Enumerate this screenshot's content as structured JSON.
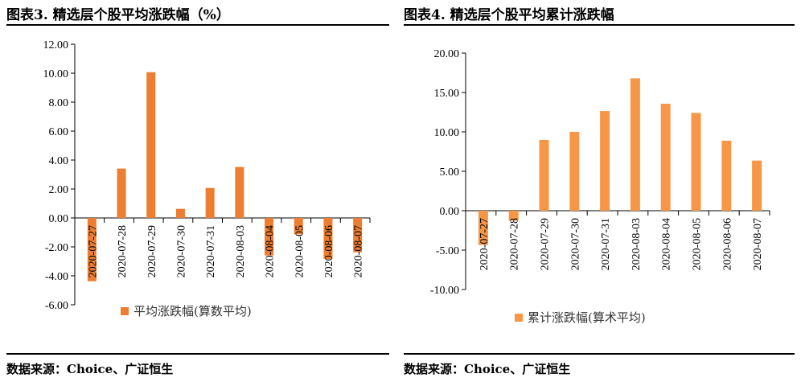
{
  "left": {
    "title": "图表3. 精选层个股平均涨跌幅（%）",
    "source": "数据来源：Choice、广证恒生"
  },
  "right": {
    "title": "图表4. 精选层个股平均累计涨跌幅",
    "source": "数据来源：Choice、广证恒生"
  },
  "chart_data": [
    {
      "type": "bar",
      "categories": [
        "2020-07-27",
        "2020-07-28",
        "2020-07-29",
        "2020-07-30",
        "2020-07-31",
        "2020-08-03",
        "2020-08-04",
        "2020-08-05",
        "2020-08-06",
        "2020-08-07"
      ],
      "series": [
        {
          "name": "平均涨跌幅(算数平均)",
          "values": [
            -4.37,
            3.41,
            10.07,
            0.63,
            2.07,
            3.52,
            -2.59,
            -1.13,
            -2.83,
            -2.37
          ],
          "color": "#ED7D31"
        }
      ],
      "yticks": [
        "12.00",
        "10.00",
        "8.00",
        "6.00",
        "4.00",
        "2.00",
        "0.00",
        "-2.00",
        "-4.00",
        "-6.00"
      ],
      "ylim": [
        -6,
        12
      ],
      "legend": "bottom",
      "grid": false
    },
    {
      "type": "bar",
      "categories": [
        "2020-07-27",
        "2020-07-28",
        "2020-07-29",
        "2020-07-30",
        "2020-07-31",
        "2020-08-03",
        "2020-08-04",
        "2020-08-05",
        "2020-08-06",
        "2020-08-07"
      ],
      "series": [
        {
          "name": "累计涨跌幅(算术平均)",
          "values": [
            -4.35,
            -1.26,
            8.98,
            10.0,
            12.65,
            16.8,
            13.57,
            12.41,
            8.88,
            6.36
          ],
          "color": "#F79646"
        }
      ],
      "yticks": [
        "20.00",
        "15.00",
        "10.00",
        "5.00",
        "0.00",
        "-5.00",
        "-10.00"
      ],
      "ylim": [
        -10,
        20
      ],
      "legend": "bottom",
      "grid": false
    }
  ]
}
